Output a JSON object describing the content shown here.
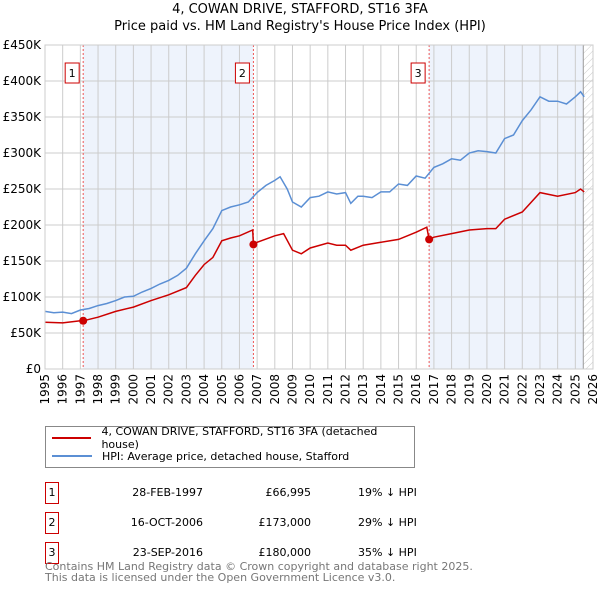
{
  "chart_data": {
    "type": "line",
    "title": "4, COWAN DRIVE, STAFFORD, ST16 3FA",
    "subtitle": "Price paid vs. HM Land Registry's House Price Index (HPI)",
    "xlim": [
      1995,
      2026
    ],
    "ylim": [
      0,
      450000
    ],
    "y_ticks": [
      {
        "v": 0,
        "label": "£0"
      },
      {
        "v": 50000,
        "label": "£50K"
      },
      {
        "v": 100000,
        "label": "£100K"
      },
      {
        "v": 150000,
        "label": "£150K"
      },
      {
        "v": 200000,
        "label": "£200K"
      },
      {
        "v": 250000,
        "label": "£250K"
      },
      {
        "v": 300000,
        "label": "£300K"
      },
      {
        "v": 350000,
        "label": "£350K"
      },
      {
        "v": 400000,
        "label": "£400K"
      },
      {
        "v": 450000,
        "label": "£450K"
      }
    ],
    "x_ticks": [
      "1995",
      "1996",
      "1997",
      "1998",
      "1999",
      "2000",
      "2001",
      "2002",
      "2003",
      "2004",
      "2005",
      "2006",
      "2007",
      "2008",
      "2009",
      "2010",
      "2011",
      "2012",
      "2013",
      "2014",
      "2015",
      "2016",
      "2017",
      "2018",
      "2019",
      "2020",
      "2021",
      "2022",
      "2023",
      "2024",
      "2025",
      "2026"
    ],
    "grid": true,
    "series": [
      {
        "name": "4, COWAN DRIVE, STAFFORD, ST16 3FA (detached house)",
        "color": "#cc0000",
        "x": [
          1995,
          1996,
          1997,
          1997.16,
          1998,
          1999,
          2000,
          2001,
          2002,
          2003,
          2003.5,
          2004,
          2004.5,
          2005,
          2005.5,
          2006,
          2006.75,
          2006.79,
          2007,
          2008,
          2008.5,
          2009,
          2009.5,
          2010,
          2011,
          2011.5,
          2012,
          2012.3,
          2013,
          2014,
          2015,
          2015.5,
          2016,
          2016.6,
          2016.73,
          2017,
          2018,
          2019,
          2020,
          2020.5,
          2021,
          2022,
          2023,
          2024,
          2025,
          2025.3,
          2025.5
        ],
        "y": [
          65000,
          64000,
          67000,
          66995,
          72000,
          80000,
          86000,
          95000,
          103000,
          113000,
          130000,
          145000,
          155000,
          178000,
          182000,
          185000,
          193000,
          173000,
          176000,
          185000,
          188000,
          165000,
          160000,
          168000,
          175000,
          172000,
          172000,
          165000,
          172000,
          176000,
          180000,
          185000,
          190000,
          197000,
          180000,
          183000,
          188000,
          193000,
          195000,
          195000,
          208000,
          218000,
          245000,
          240000,
          245000,
          250000,
          246000
        ]
      },
      {
        "name": "HPI: Average price, detached house, Stafford",
        "color": "#5b8fd4",
        "x": [
          1995,
          1995.5,
          1996,
          1996.5,
          1997,
          1997.5,
          1998,
          1998.5,
          1999,
          1999.5,
          2000,
          2000.5,
          2001,
          2001.5,
          2002,
          2002.5,
          2003,
          2003.5,
          2004,
          2004.5,
          2005,
          2005.5,
          2006,
          2006.5,
          2007,
          2007.5,
          2008,
          2008.3,
          2008.7,
          2009,
          2009.5,
          2010,
          2010.5,
          2011,
          2011.5,
          2012,
          2012.3,
          2012.7,
          2013,
          2013.5,
          2014,
          2014.5,
          2015,
          2015.5,
          2016,
          2016.5,
          2017,
          2017.5,
          2018,
          2018.5,
          2019,
          2019.5,
          2020,
          2020.5,
          2021,
          2021.5,
          2022,
          2022.5,
          2023,
          2023.5,
          2024,
          2024.5,
          2025,
          2025.3,
          2025.5
        ],
        "y": [
          80000,
          78000,
          79000,
          77000,
          82000,
          84000,
          88000,
          91000,
          95000,
          100000,
          101000,
          107000,
          112000,
          118000,
          123000,
          130000,
          140000,
          160000,
          178000,
          195000,
          220000,
          225000,
          228000,
          232000,
          245000,
          255000,
          262000,
          267000,
          250000,
          232000,
          225000,
          238000,
          240000,
          246000,
          243000,
          245000,
          230000,
          240000,
          240000,
          238000,
          246000,
          246000,
          257000,
          255000,
          268000,
          265000,
          280000,
          285000,
          292000,
          290000,
          300000,
          303000,
          302000,
          300000,
          320000,
          325000,
          345000,
          360000,
          378000,
          372000,
          372000,
          368000,
          378000,
          385000,
          378000
        ]
      }
    ],
    "sales": [
      {
        "label": "1",
        "x": 1997.16,
        "price": 66995
      },
      {
        "label": "2",
        "x": 2006.79,
        "price": 173000
      },
      {
        "label": "3",
        "x": 2016.73,
        "price": 180000
      }
    ],
    "legend": "below"
  },
  "title": "4, COWAN DRIVE, STAFFORD, ST16 3FA",
  "subtitle": "Price paid vs. HM Land Registry's House Price Index (HPI)",
  "legend": {
    "items": [
      "4, COWAN DRIVE, STAFFORD, ST16 3FA (detached house)",
      "HPI: Average price, detached house, Stafford"
    ]
  },
  "transactions": [
    {
      "num": "1",
      "date": "28-FEB-1997",
      "price": "£66,995",
      "hpi": "19% ↓ HPI"
    },
    {
      "num": "2",
      "date": "16-OCT-2006",
      "price": "£173,000",
      "hpi": "29% ↓ HPI"
    },
    {
      "num": "3",
      "date": "23-SEP-2016",
      "price": "£180,000",
      "hpi": "35% ↓ HPI"
    }
  ],
  "footer": {
    "line1": "Contains HM Land Registry data © Crown copyright and database right 2025.",
    "line2": "This data is licensed under the Open Government Licence v3.0."
  }
}
